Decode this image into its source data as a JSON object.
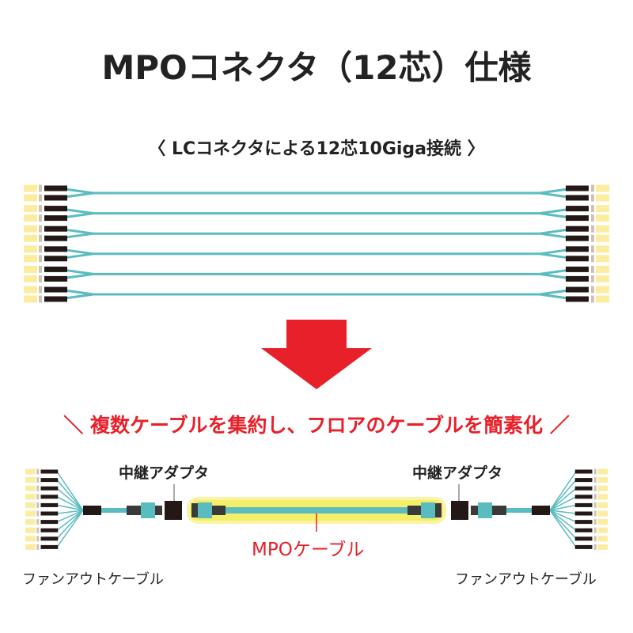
{
  "title": "MPOコネクタ（12芯）仕様",
  "subtitle": "〈 LCコネクタによる12芯10Giga接続 〉",
  "banner": "＼ 複数ケーブルを集約し、フロアのケーブルを簡素化 ／",
  "labels": {
    "adapter_left": "中継アダプタ",
    "adapter_right": "中継アダプタ",
    "fanout_left": "ファンアウトケーブル",
    "fanout_right": "ファンアウトケーブル",
    "mpo_cable": "MPOケーブル"
  },
  "colors": {
    "cable": "#5bbcc0",
    "connector": "#fbeca0",
    "arrow": "#e8202a",
    "glow": "#f4ec5a",
    "boot": "#231815"
  },
  "counts": {
    "lc_pairs": 6,
    "fanout_fibers": 10
  }
}
